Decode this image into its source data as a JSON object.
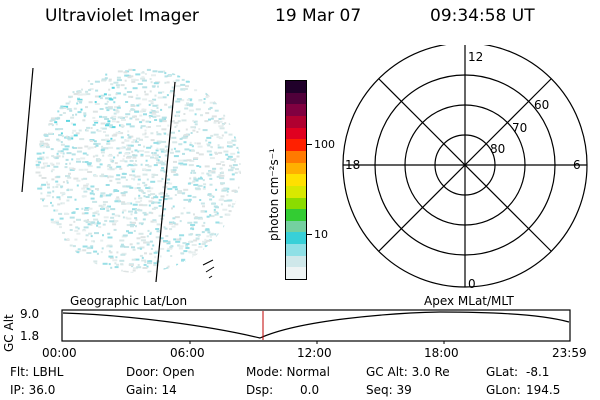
{
  "header": {
    "title": "Ultraviolet Imager",
    "date": "19 Mar 07",
    "time": "09:34:58 UT"
  },
  "colorbar": {
    "unit_label": "photon cm⁻²s⁻¹",
    "ticks": [
      "100",
      "10"
    ],
    "colors": [
      "#eef4f4",
      "#cfe8ea",
      "#8fe0e6",
      "#38d0d8",
      "#74d0a0",
      "#33cc33",
      "#8bdc00",
      "#d8e800",
      "#ffe000",
      "#ffb000",
      "#ff7a00",
      "#ff2000",
      "#e00020",
      "#b00030",
      "#800040",
      "#50003a",
      "#20002a"
    ]
  },
  "polar_plot": {
    "hour_labels": {
      "top": "12",
      "left": "18",
      "right": "6",
      "bottom": "0"
    },
    "lat_labels": [
      "60",
      "70",
      "80"
    ]
  },
  "altitude_plot": {
    "left_label": "Geographic Lat/Lon",
    "right_label": "Apex MLat/MLT",
    "ylabel": "GC Alt",
    "yticks": [
      "9.0",
      "1.8"
    ],
    "xticks": [
      "00:00",
      "06:00",
      "12:00",
      "18:00",
      "23:59"
    ]
  },
  "info": {
    "filter": "Flt: LBHL",
    "door": "Door: Open",
    "mode": "Mode: Normal",
    "gc_alt": "GC Alt: 3.0 Re",
    "glat_label": "GLat:",
    "glat_value": "-8.1",
    "ip": "IP: 36.0",
    "gain": "Gain: 14",
    "dsp_label": "Dsp:",
    "dsp_value": "0.0",
    "seq": "Seq: 39",
    "glon_label": "GLon:",
    "glon_value": "194.5"
  }
}
